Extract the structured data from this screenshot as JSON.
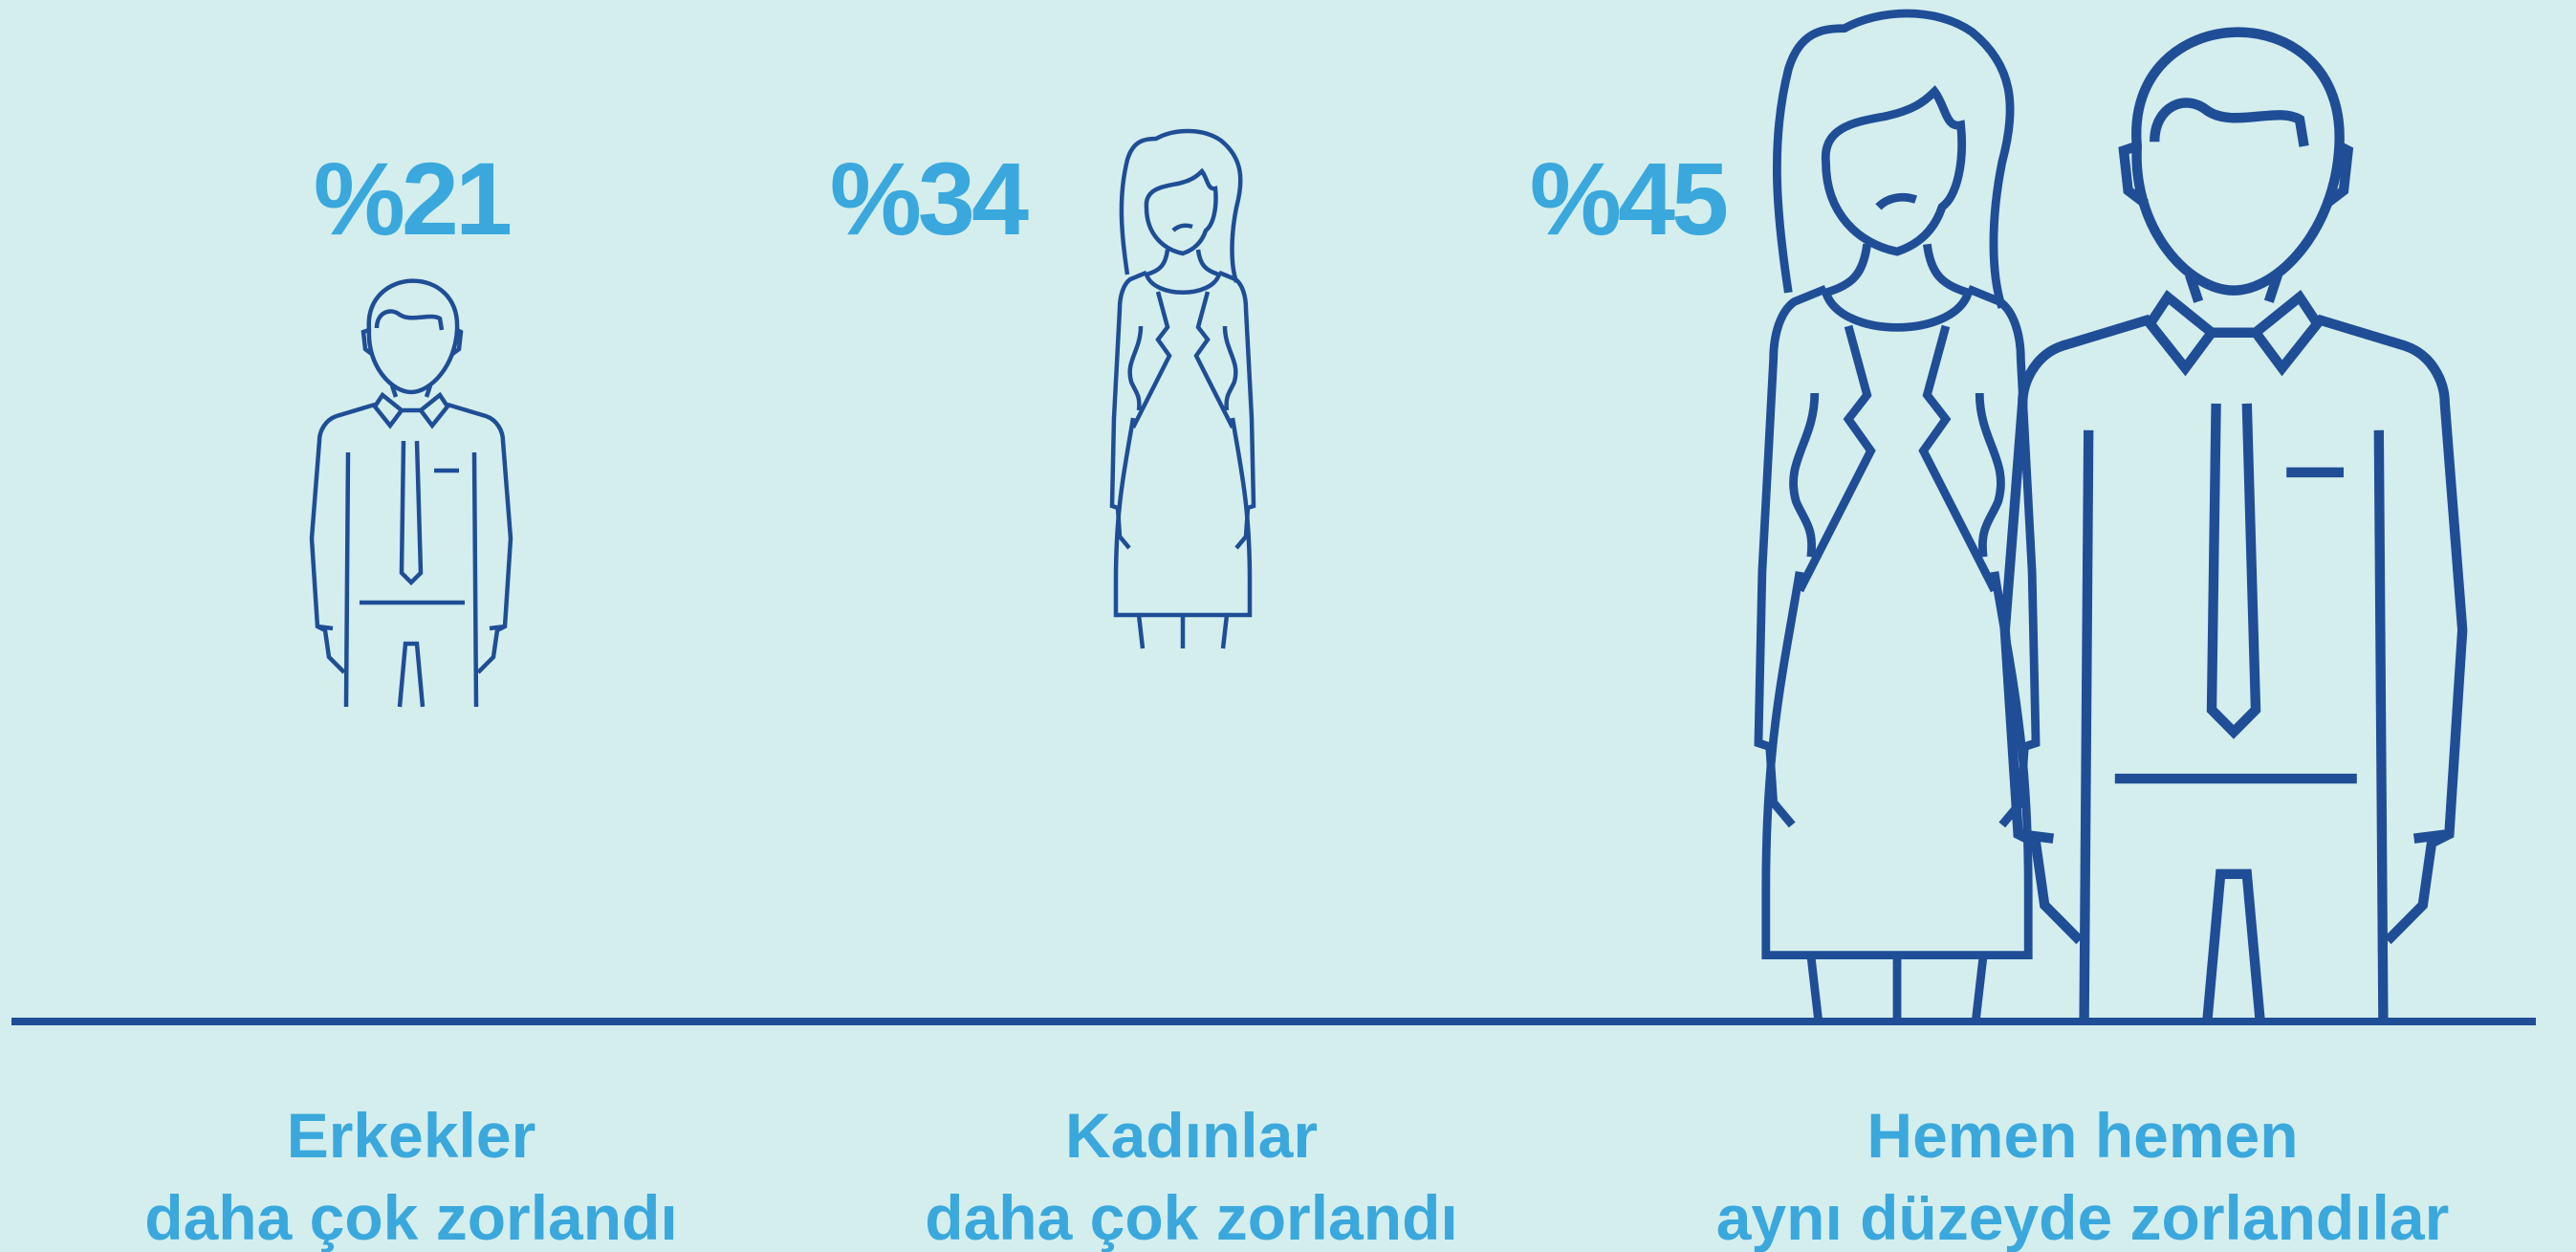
{
  "items": [
    {
      "percent": "%21",
      "label": [
        "Erkekler",
        "daha çok zorlandı"
      ]
    },
    {
      "percent": "%34",
      "label": [
        "Kadınlar",
        "daha çok zorlandı"
      ]
    },
    {
      "percent": "%45",
      "label": [
        "Hemen hemen",
        "aynı düzeyde zorlandılar"
      ]
    }
  ]
}
